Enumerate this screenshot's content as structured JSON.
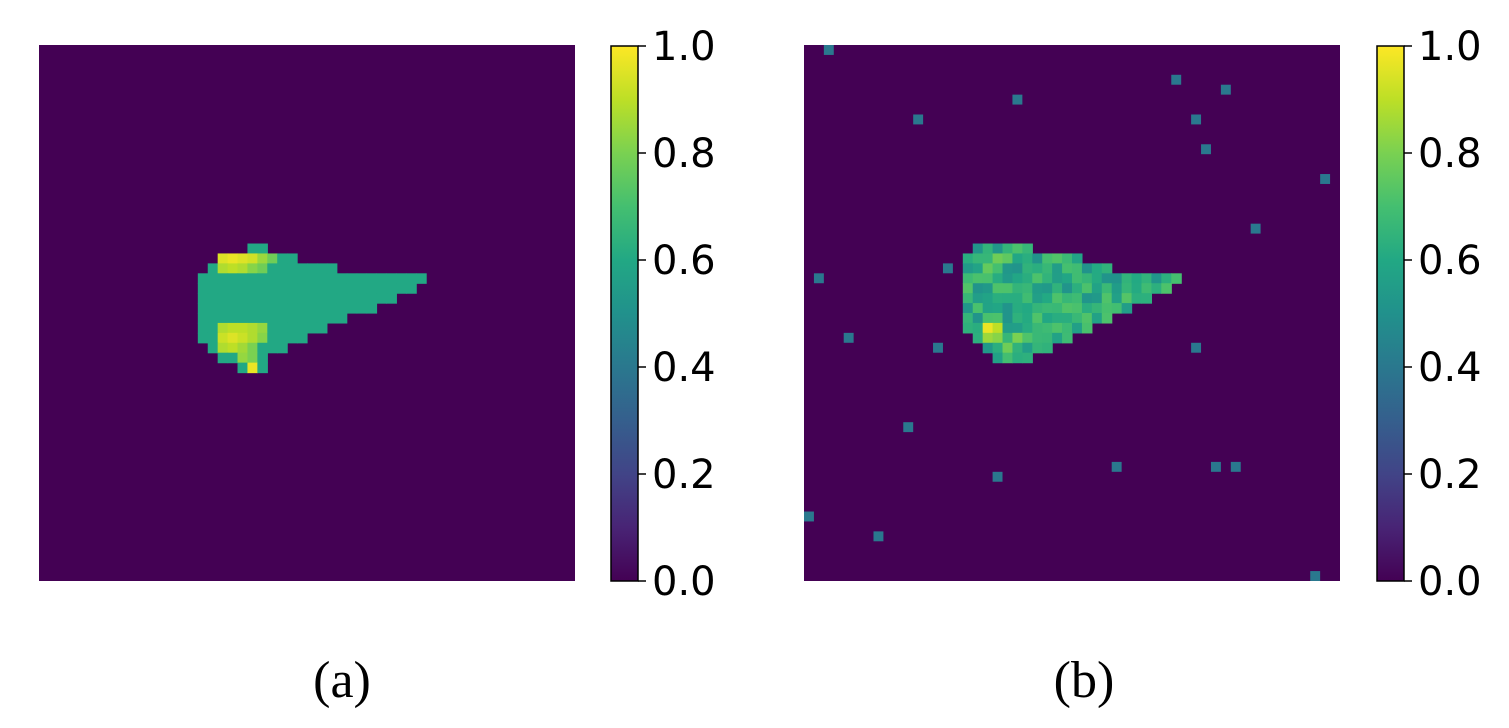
{
  "panels": [
    {
      "caption": "(a)",
      "colorbar": {
        "ticks": [
          "0.0",
          "0.2",
          "0.4",
          "0.6",
          "0.8",
          "1.0"
        ]
      }
    },
    {
      "caption": "(b)",
      "colorbar": {
        "ticks": [
          "0.0",
          "0.2",
          "0.4",
          "0.6",
          "0.8",
          "1.0"
        ]
      }
    }
  ],
  "chart_data": [
    {
      "type": "heatmap",
      "title": "",
      "xlabel": "",
      "ylabel": "",
      "axes_visible": false,
      "grid_size": [
        54,
        54
      ],
      "colormap": "viridis",
      "vmin": 0.0,
      "vmax": 1.0,
      "colorbar_ticks": [
        0.0,
        0.2,
        0.4,
        0.6,
        0.8,
        1.0
      ],
      "background_value": 0.0,
      "noise_pixel_value": 0.4,
      "uniform_patch": true,
      "main_value": 0.6,
      "shape_row_spans": [
        [
          20,
          21,
          22
        ],
        [
          21,
          18,
          25
        ],
        [
          22,
          17,
          29
        ],
        [
          23,
          16,
          38
        ],
        [
          24,
          16,
          37
        ],
        [
          25,
          16,
          35
        ],
        [
          26,
          16,
          33
        ],
        [
          27,
          16,
          30
        ],
        [
          28,
          16,
          28
        ],
        [
          29,
          16,
          26
        ],
        [
          30,
          17,
          24
        ],
        [
          31,
          18,
          22
        ],
        [
          32,
          20,
          22
        ]
      ],
      "hot_pixels": [
        [
          21,
          18,
          0.95
        ],
        [
          21,
          19,
          0.97
        ],
        [
          21,
          20,
          0.95
        ],
        [
          21,
          21,
          0.93
        ],
        [
          21,
          22,
          0.85
        ],
        [
          21,
          23,
          0.78
        ],
        [
          22,
          18,
          0.88
        ],
        [
          22,
          19,
          0.9
        ],
        [
          22,
          20,
          0.88
        ],
        [
          22,
          21,
          0.82
        ],
        [
          22,
          22,
          0.78
        ],
        [
          28,
          18,
          0.88
        ],
        [
          28,
          19,
          0.9
        ],
        [
          28,
          20,
          0.9
        ],
        [
          28,
          21,
          0.88
        ],
        [
          28,
          22,
          0.84
        ],
        [
          29,
          18,
          0.92
        ],
        [
          29,
          19,
          0.95
        ],
        [
          29,
          20,
          0.92
        ],
        [
          29,
          21,
          0.88
        ],
        [
          29,
          22,
          0.82
        ],
        [
          30,
          18,
          0.88
        ],
        [
          30,
          19,
          0.9
        ],
        [
          30,
          20,
          0.86
        ],
        [
          30,
          21,
          0.8
        ],
        [
          31,
          20,
          0.84
        ],
        [
          31,
          21,
          0.8
        ],
        [
          32,
          21,
          0.97
        ]
      ]
    },
    {
      "type": "heatmap",
      "title": "",
      "xlabel": "",
      "ylabel": "",
      "axes_visible": false,
      "grid_size": [
        54,
        54
      ],
      "colormap": "viridis",
      "vmin": 0.0,
      "vmax": 1.0,
      "colorbar_ticks": [
        0.0,
        0.2,
        0.4,
        0.6,
        0.8,
        1.0
      ],
      "background_value": 0.0,
      "noise_pixel_value": 0.4,
      "uniform_patch": false,
      "main_value": 0.62,
      "shape_row_spans": [
        [
          20,
          17,
          22
        ],
        [
          21,
          16,
          27
        ],
        [
          22,
          16,
          30
        ],
        [
          23,
          16,
          37
        ],
        [
          24,
          16,
          36
        ],
        [
          25,
          16,
          34
        ],
        [
          26,
          16,
          32
        ],
        [
          27,
          16,
          30
        ],
        [
          28,
          16,
          28
        ],
        [
          29,
          17,
          26
        ],
        [
          30,
          18,
          24
        ],
        [
          31,
          19,
          22
        ]
      ],
      "hot_pixels": [
        [
          28,
          18,
          0.97
        ],
        [
          28,
          19,
          0.9
        ],
        [
          29,
          18,
          0.85
        ],
        [
          29,
          19,
          0.82
        ],
        [
          21,
          19,
          0.78
        ],
        [
          21,
          20,
          0.75
        ],
        [
          22,
          18,
          0.76
        ],
        [
          29,
          21,
          0.8
        ],
        [
          30,
          20,
          0.78
        ]
      ],
      "noise_pixels": [
        [
          0,
          2
        ],
        [
          3,
          37
        ],
        [
          4,
          42
        ],
        [
          5,
          21
        ],
        [
          7,
          11
        ],
        [
          7,
          39
        ],
        [
          10,
          40
        ],
        [
          13,
          52
        ],
        [
          18,
          45
        ],
        [
          22,
          14
        ],
        [
          23,
          1
        ],
        [
          29,
          4
        ],
        [
          30,
          13
        ],
        [
          30,
          39
        ],
        [
          38,
          10
        ],
        [
          42,
          31
        ],
        [
          42,
          41
        ],
        [
          42,
          43
        ],
        [
          43,
          19
        ],
        [
          47,
          0
        ],
        [
          49,
          7
        ],
        [
          53,
          51
        ]
      ]
    }
  ]
}
